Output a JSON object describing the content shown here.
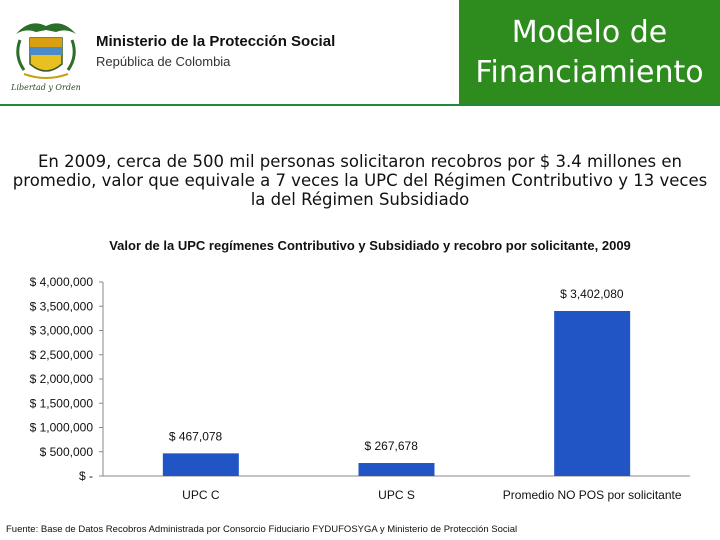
{
  "header": {
    "ministry_name": "Ministerio de la Protección Social",
    "ministry_sub": "República de Colombia",
    "emblem_icon": "colombia-coat-of-arms-icon",
    "emblem_motto": "Libertad y Orden",
    "title_line1": "Modelo de",
    "title_line2": "Financiamiento",
    "title_bg": "#2e8b1e"
  },
  "intro_text": "En 2009, cerca de 500 mil personas solicitaron recobros por $ 3.4 millones en promedio, valor que equivale a 7 veces la UPC del Régimen Contributivo y 13 veces la del Régimen Subsidiado",
  "chart_data": {
    "type": "bar",
    "title": "Valor de la UPC regímenes Contributivo y Subsidiado y recobro por solicitante, 2009",
    "categories": [
      "UPC C",
      "UPC S",
      "Promedio NO POS por solicitante"
    ],
    "values": [
      467078,
      267678,
      3402080
    ],
    "data_labels": [
      "$ 467,078",
      "$ 267,678",
      "$ 3,402,080"
    ],
    "ylim": [
      0,
      4000000
    ],
    "yticks": [
      0,
      500000,
      1000000,
      1500000,
      2000000,
      2500000,
      3000000,
      3500000,
      4000000
    ],
    "ytick_labels": [
      "$ -",
      "$ 500,000",
      "$ 1,000,000",
      "$ 1,500,000",
      "$ 2,000,000",
      "$ 2,500,000",
      "$ 3,000,000",
      "$ 3,500,000",
      "$ 4,000,000"
    ],
    "bar_color": "#2155c5",
    "grid": false,
    "legend": "none"
  },
  "source": "Fuente: Base de Datos Recobros Administrada por Consorcio Fiduciario FYDUFOSYGA y Ministerio de Protección Social"
}
